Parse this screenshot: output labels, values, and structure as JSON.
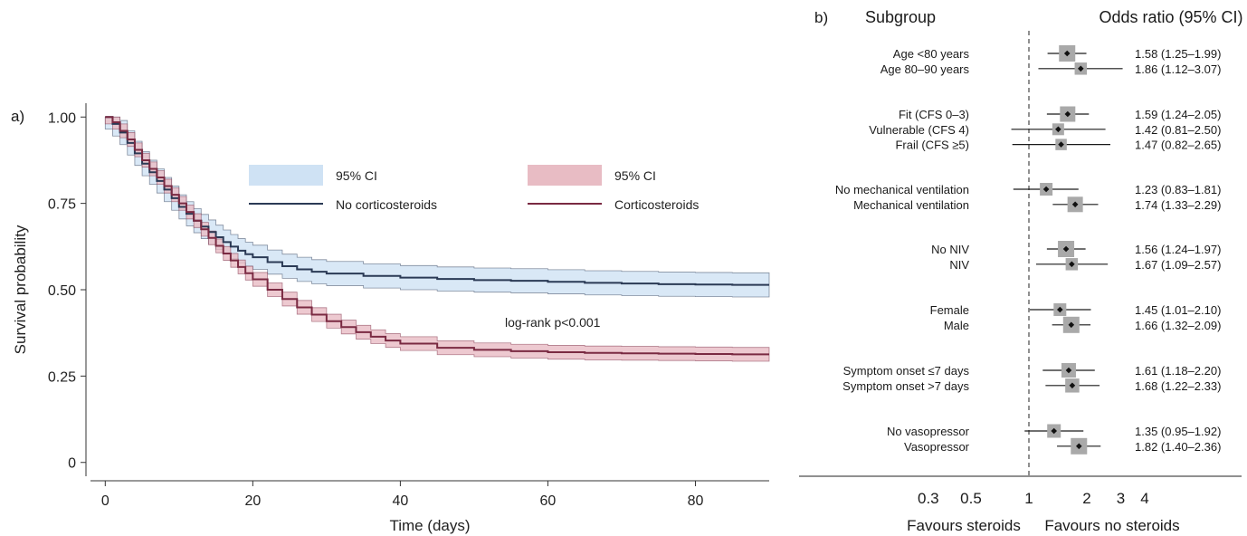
{
  "chart_data": [
    {
      "type": "line",
      "panel_label": "a)",
      "xlabel": "Time (days)",
      "ylabel": "Survival probability",
      "xlim": [
        -2,
        90
      ],
      "ylim": [
        -0.04,
        1.04
      ],
      "xticks": [
        0,
        20,
        40,
        60,
        80
      ],
      "yticks": [
        0,
        0.25,
        0.5,
        0.75,
        1.0
      ],
      "ytick_labels": [
        "0",
        "0.25",
        "0.50",
        "0.75",
        "1.00"
      ],
      "annotation": "log-rank p<0.001",
      "legend": [
        {
          "label": "95% CI",
          "kind": "band",
          "color": "#cfe2f4"
        },
        {
          "label": "No corticosteroids",
          "kind": "line",
          "color": "#2b3a55"
        },
        {
          "label": "95% CI",
          "kind": "band",
          "color": "#e8bcc4"
        },
        {
          "label": "Corticosteroids",
          "kind": "line",
          "color": "#7a2a42"
        }
      ],
      "series": [
        {
          "name": "No corticosteroids",
          "color": "#2b3a55",
          "band_color": "#cfe2f4",
          "band_width": 0.035,
          "x": [
            0,
            1,
            2,
            3,
            4,
            5,
            6,
            7,
            8,
            9,
            10,
            11,
            12,
            13,
            14,
            15,
            16,
            17,
            18,
            19,
            20,
            22,
            24,
            26,
            28,
            30,
            35,
            40,
            45,
            50,
            55,
            60,
            65,
            70,
            75,
            80,
            85,
            90
          ],
          "y": [
            1.0,
            0.98,
            0.955,
            0.925,
            0.895,
            0.865,
            0.84,
            0.815,
            0.79,
            0.765,
            0.74,
            0.72,
            0.7,
            0.683,
            0.667,
            0.652,
            0.638,
            0.625,
            0.613,
            0.603,
            0.594,
            0.58,
            0.568,
            0.559,
            0.552,
            0.547,
            0.54,
            0.535,
            0.531,
            0.528,
            0.526,
            0.523,
            0.52,
            0.518,
            0.516,
            0.515,
            0.514,
            0.514
          ]
        },
        {
          "name": "Corticosteroids",
          "color": "#7a2a42",
          "band_color": "#e8bcc4",
          "band_width": 0.02,
          "x": [
            0,
            1,
            2,
            3,
            4,
            5,
            6,
            7,
            8,
            9,
            10,
            11,
            12,
            13,
            14,
            15,
            16,
            17,
            18,
            19,
            20,
            22,
            24,
            26,
            28,
            30,
            32,
            34,
            36,
            38,
            40,
            45,
            50,
            55,
            60,
            65,
            70,
            75,
            80,
            85,
            90
          ],
          "y": [
            1.0,
            0.985,
            0.96,
            0.935,
            0.905,
            0.875,
            0.85,
            0.825,
            0.8,
            0.775,
            0.75,
            0.725,
            0.7,
            0.675,
            0.65,
            0.627,
            0.605,
            0.585,
            0.566,
            0.548,
            0.53,
            0.5,
            0.473,
            0.449,
            0.428,
            0.409,
            0.392,
            0.377,
            0.364,
            0.353,
            0.344,
            0.332,
            0.326,
            0.322,
            0.319,
            0.317,
            0.316,
            0.315,
            0.314,
            0.313,
            0.313
          ]
        }
      ]
    },
    {
      "type": "forest",
      "panel_label": "b)",
      "header_left": "Subgroup",
      "header_right": "Odds ratio (95% CI)",
      "x_scale": "log",
      "xlim": [
        0.15,
        6
      ],
      "reference_line": 1,
      "xticks": [
        0.3,
        0.5,
        1,
        2,
        3,
        4
      ],
      "xtick_labels": [
        "0.3",
        "0.5",
        "1",
        "2",
        "3",
        "4"
      ],
      "favours_left": "Favours steroids",
      "favours_right": "Favours no steroids",
      "rows": [
        {
          "label": "Age <80 years",
          "or": 1.58,
          "lo": 1.25,
          "hi": 1.99,
          "text": "1.58 (1.25–1.99)",
          "weight": 1.0
        },
        {
          "label": "Age 80–90 years",
          "or": 1.86,
          "lo": 1.12,
          "hi": 3.07,
          "text": "1.86 (1.12–3.07)",
          "weight": 0.55
        },
        {
          "label": "Fit (CFS 0–3)",
          "or": 1.59,
          "lo": 1.24,
          "hi": 2.05,
          "text": "1.59 (1.24–2.05)",
          "weight": 0.9
        },
        {
          "label": "Vulnerable (CFS 4)",
          "or": 1.42,
          "lo": 0.81,
          "hi": 2.5,
          "text": "1.42 (0.81–2.50)",
          "weight": 0.5
        },
        {
          "label": "Frail (CFS ≥5)",
          "or": 1.47,
          "lo": 0.82,
          "hi": 2.65,
          "text": "1.47 (0.82–2.65)",
          "weight": 0.45
        },
        {
          "label": "No mechanical ventilation",
          "or": 1.23,
          "lo": 0.83,
          "hi": 1.81,
          "text": "1.23 (0.83–1.81)",
          "weight": 0.6
        },
        {
          "label": "Mechanical ventilation",
          "or": 1.74,
          "lo": 1.33,
          "hi": 2.29,
          "text": "1.74 (1.33–2.29)",
          "weight": 0.9
        },
        {
          "label": "No NIV",
          "or": 1.56,
          "lo": 1.24,
          "hi": 1.97,
          "text": "1.56 (1.24–1.97)",
          "weight": 1.0
        },
        {
          "label": "NIV",
          "or": 1.67,
          "lo": 1.09,
          "hi": 2.57,
          "text": "1.67 (1.09–2.57)",
          "weight": 0.55
        },
        {
          "label": "Female",
          "or": 1.45,
          "lo": 1.01,
          "hi": 2.1,
          "text": "1.45 (1.01–2.10)",
          "weight": 0.6
        },
        {
          "label": "Male",
          "or": 1.66,
          "lo": 1.32,
          "hi": 2.09,
          "text": "1.66 (1.32–2.09)",
          "weight": 1.0
        },
        {
          "label": "Symptom onset ≤7 days",
          "or": 1.61,
          "lo": 1.18,
          "hi": 2.2,
          "text": "1.61 (1.18–2.20)",
          "weight": 0.8
        },
        {
          "label": "Symptom onset >7 days",
          "or": 1.68,
          "lo": 1.22,
          "hi": 2.33,
          "text": "1.68 (1.22–2.33)",
          "weight": 0.75
        },
        {
          "label": "No vasopressor",
          "or": 1.35,
          "lo": 0.95,
          "hi": 1.92,
          "text": "1.35 (0.95–1.92)",
          "weight": 0.7
        },
        {
          "label": "Vasopressor",
          "or": 1.82,
          "lo": 1.4,
          "hi": 2.36,
          "text": "1.82 (1.40–2.36)",
          "weight": 1.0
        }
      ]
    }
  ]
}
